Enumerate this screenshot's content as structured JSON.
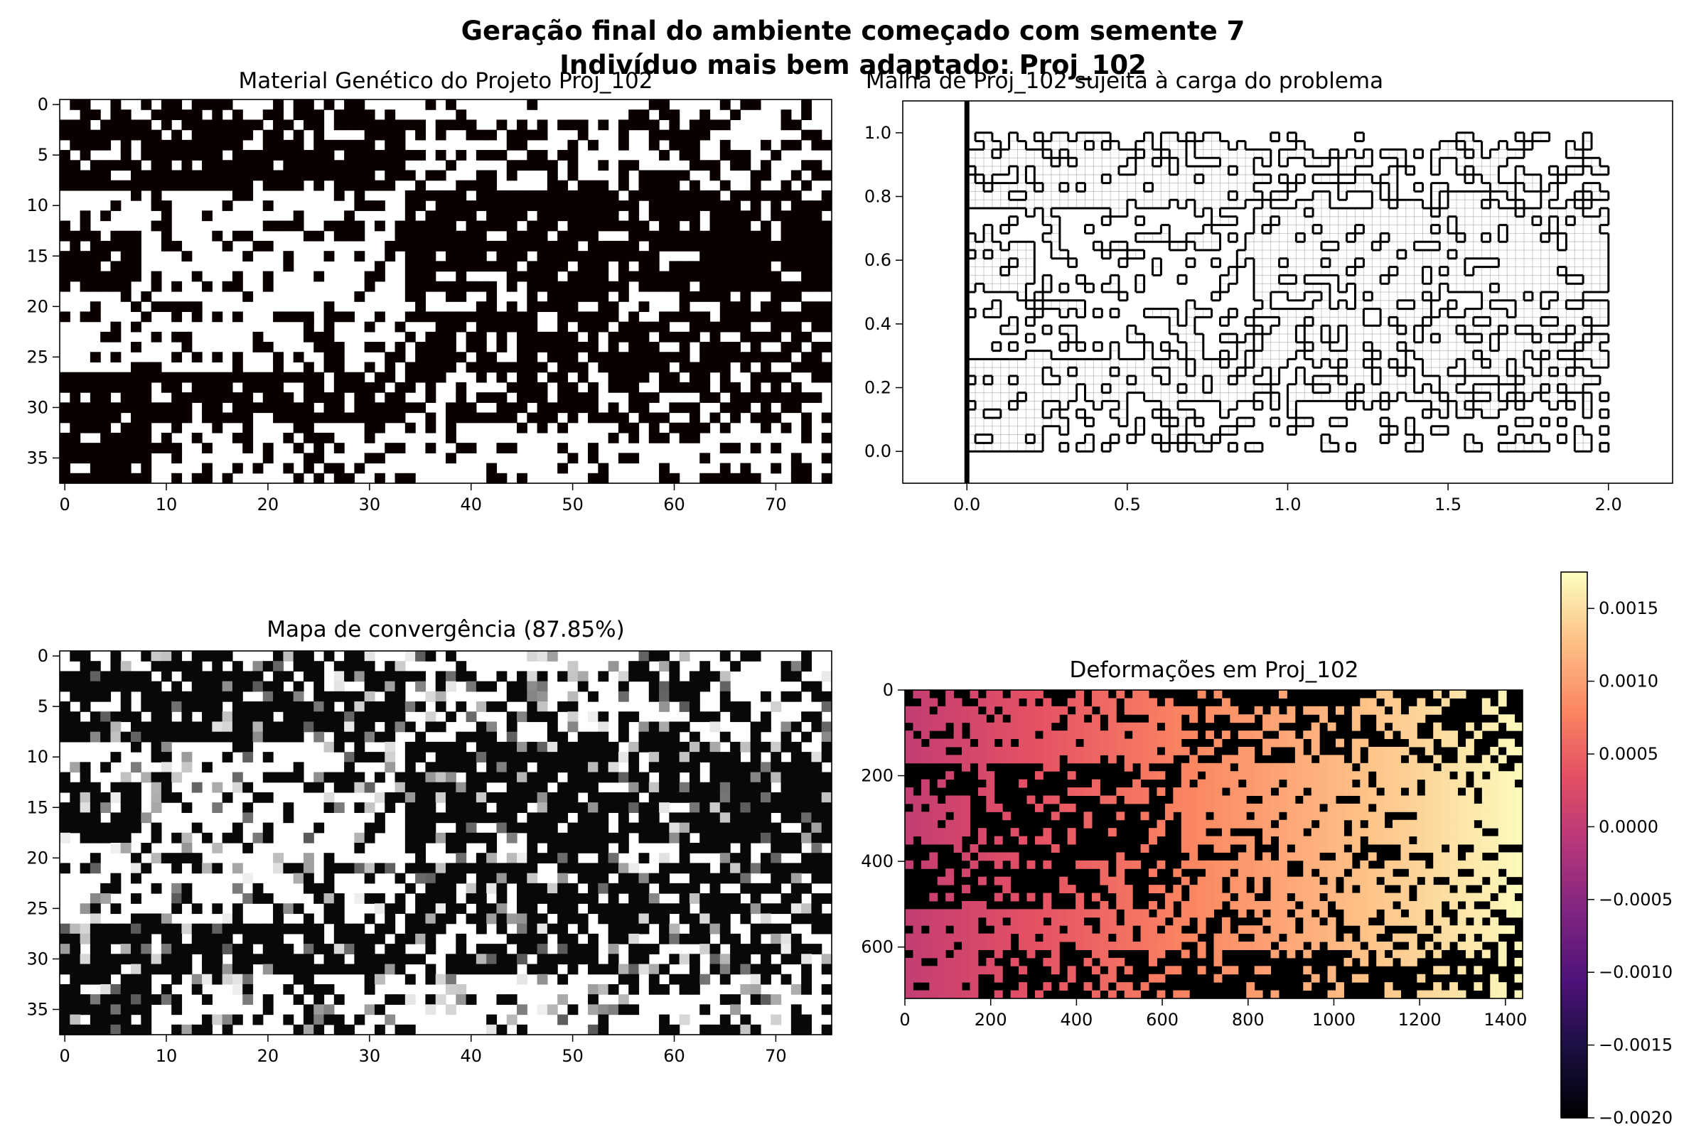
{
  "figure": {
    "suptitle_line1": "Geração final do ambiente começado com semente 7",
    "suptitle_line2": "Indivíduo mais bem adaptado: Proj_102"
  },
  "chart_data": [
    {
      "type": "heatmap",
      "title": "Material Genético do Projeto Proj_102",
      "colormap": "binary",
      "rows": 38,
      "cols": 76,
      "xticks": [
        0,
        10,
        20,
        30,
        40,
        50,
        60,
        70
      ],
      "yticks": [
        0,
        5,
        10,
        15,
        20,
        25,
        30,
        35
      ],
      "grid": false,
      "colors": {
        "material": "#0b0000",
        "void": "#ffffff"
      }
    },
    {
      "type": "line",
      "title": "Malha de Proj_102 sujeita à carga do problema",
      "xlim": [
        -0.2,
        2.2
      ],
      "ylim": [
        -0.1,
        1.1
      ],
      "xticks": [
        0.0,
        0.5,
        1.0,
        1.5,
        2.0
      ],
      "yticks": [
        0.0,
        0.2,
        0.4,
        0.6,
        0.8,
        1.0
      ],
      "support_x": 0.0,
      "grid": false
    },
    {
      "type": "heatmap",
      "title": "Mapa de convergência (87.85%)",
      "colormap": "gray",
      "rows": 38,
      "cols": 76,
      "xticks": [
        0,
        10,
        20,
        30,
        40,
        50,
        60,
        70
      ],
      "yticks": [
        0,
        5,
        10,
        15,
        20,
        25,
        30,
        35
      ],
      "grid": false
    },
    {
      "type": "heatmap",
      "title": "Deformações em Proj_102",
      "colormap": "magma",
      "xlim": [
        0,
        1440
      ],
      "ylim": [
        720,
        0
      ],
      "xticks": [
        0,
        200,
        400,
        600,
        800,
        1000,
        1200,
        1400
      ],
      "yticks": [
        0,
        200,
        400,
        600
      ],
      "colorbar": {
        "vmin": -0.002,
        "vmax": 0.00175,
        "tick_values": [
          -0.002,
          -0.0015,
          -0.001,
          -0.0005,
          0.0,
          0.0005,
          0.001,
          0.0015
        ],
        "tick_labels": [
          "−0.0020",
          "−0.0015",
          "−0.0010",
          "−0.0005",
          "0.0000",
          "0.0005",
          "0.0010",
          "0.0015"
        ]
      }
    }
  ]
}
